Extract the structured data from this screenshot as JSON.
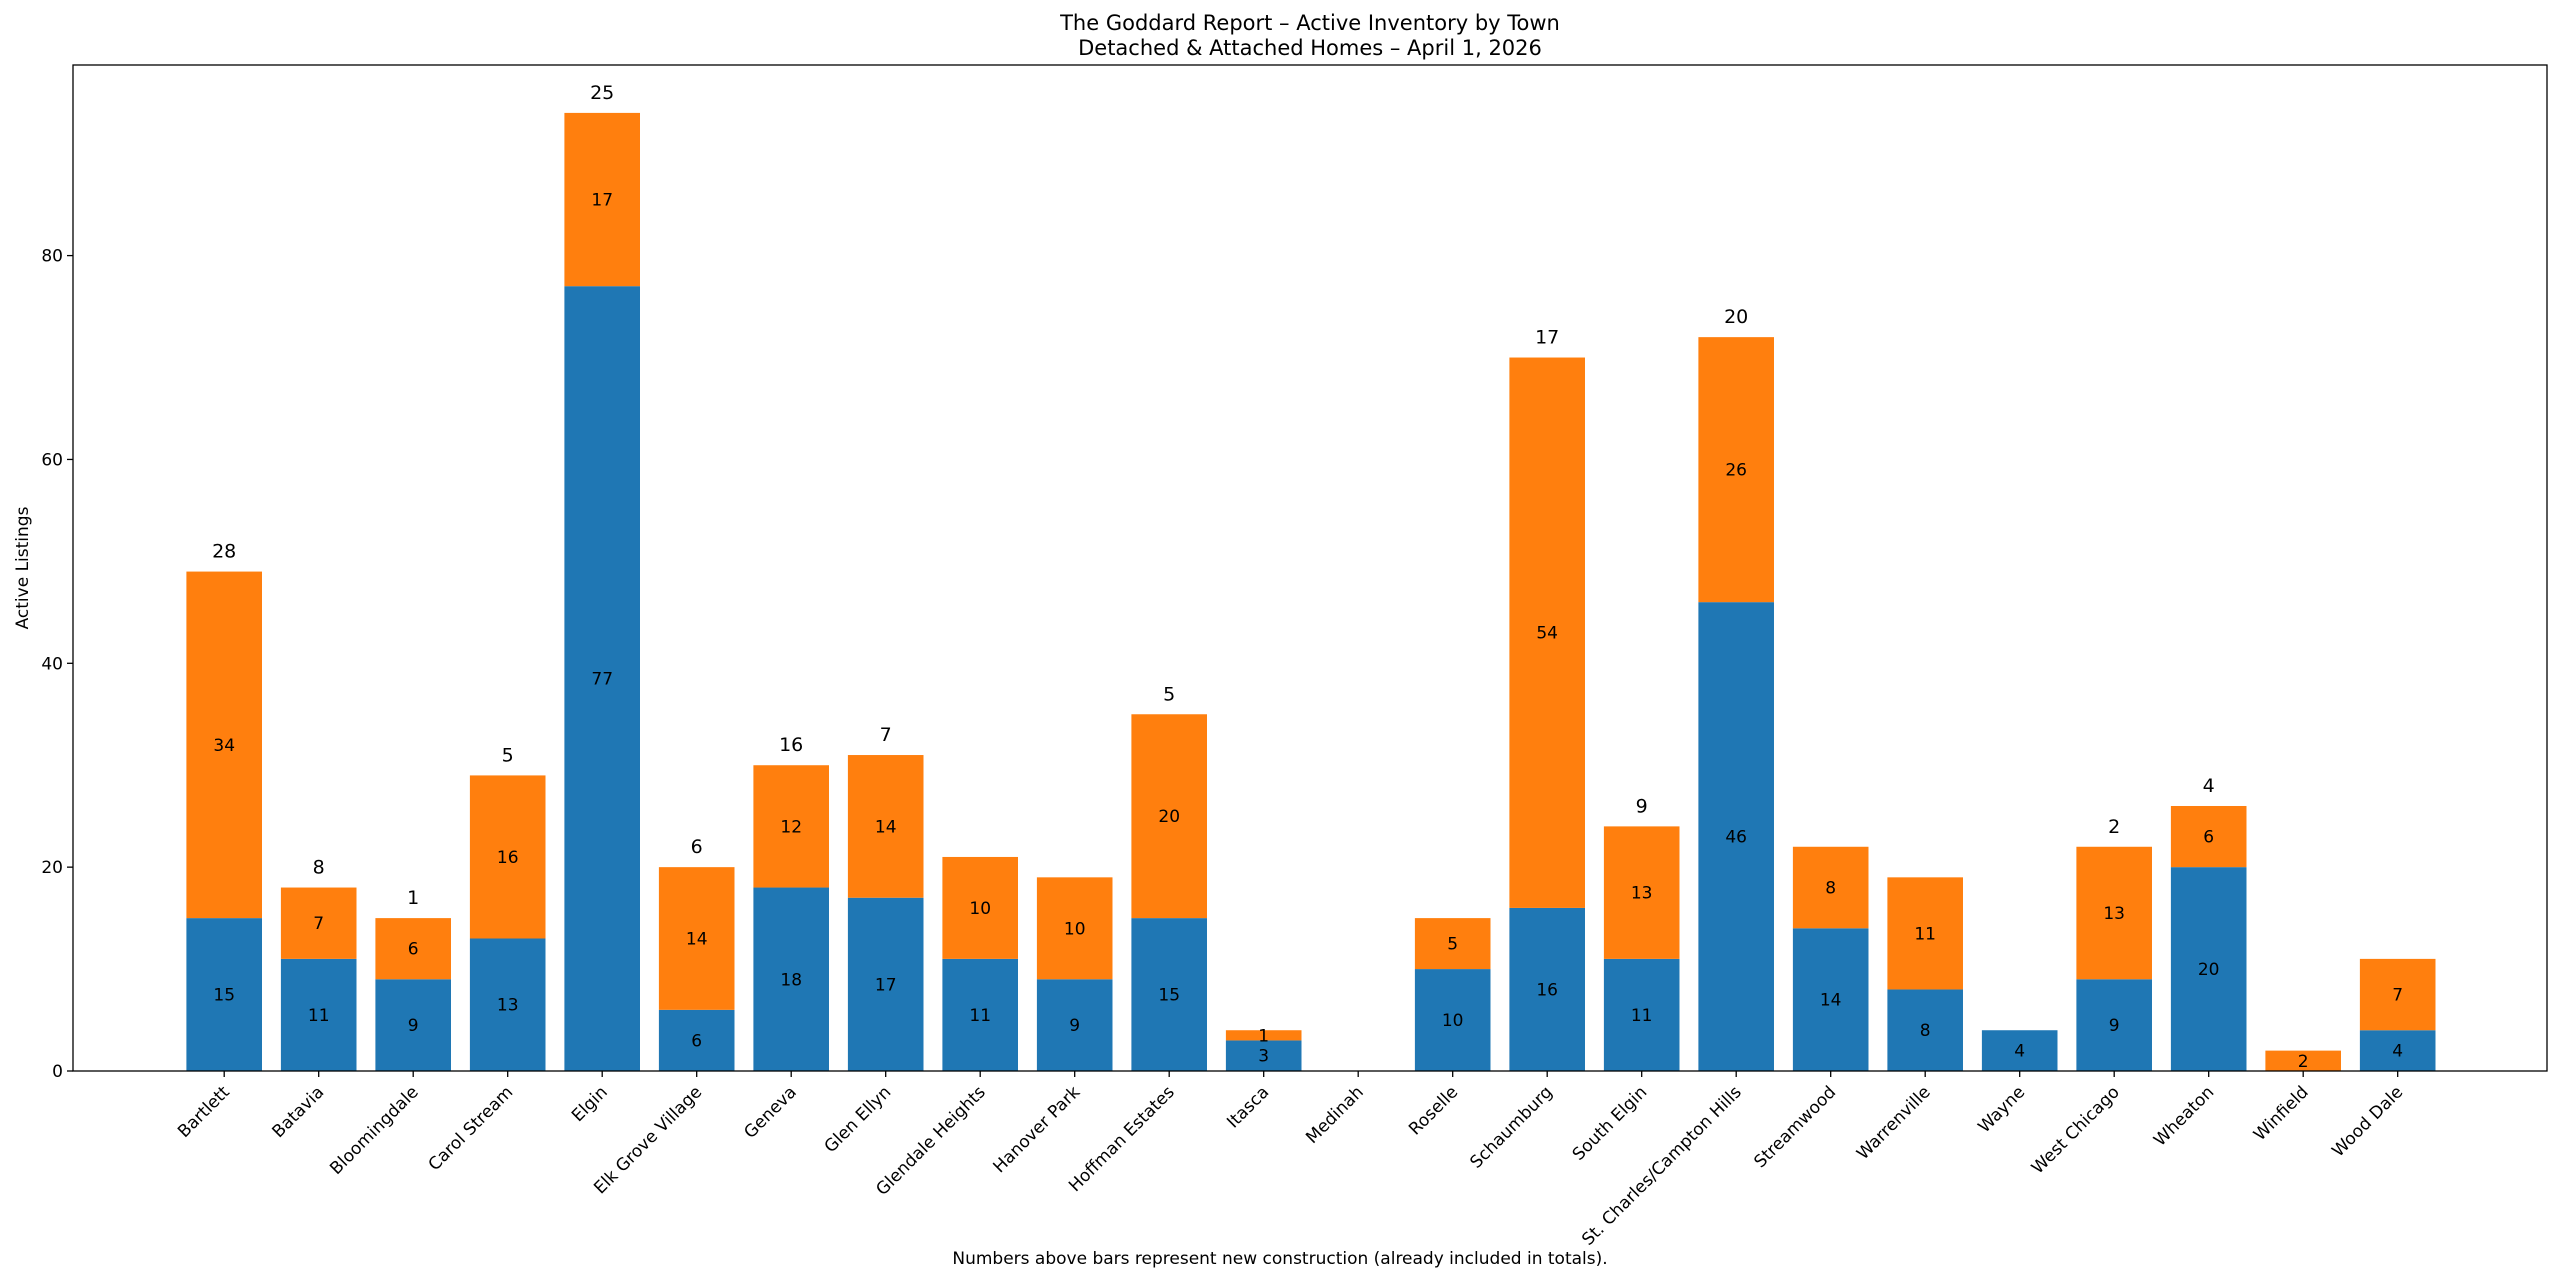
{
  "chart_data": {
    "type": "bar",
    "stacked": true,
    "title": "The Goddard Report – Active Inventory by Town",
    "subtitle": "Detached & Attached Homes – April 1, 2026",
    "xlabel": "",
    "ylabel": "Active Listings",
    "footnote": "Numbers above bars represent new construction (already included in totals).",
    "ylim": [
      0,
      98.7
    ],
    "yticks": [
      0,
      20,
      40,
      60,
      80
    ],
    "grid": false,
    "categories": [
      "Bartlett",
      "Batavia",
      "Bloomingdale",
      "Carol Stream",
      "Elgin",
      "Elk Grove Village",
      "Geneva",
      "Glen Ellyn",
      "Glendale Heights",
      "Hanover Park",
      "Hoffman Estates",
      "Itasca",
      "Medinah",
      "Roselle",
      "Schaumburg",
      "South Elgin",
      "St. Charles/Campton Hills",
      "Streamwood",
      "Warrenville",
      "Wayne",
      "West Chicago",
      "Wheaton",
      "Winfield",
      "Wood Dale"
    ],
    "series": [
      {
        "color": "#1f77b4",
        "values": [
          15,
          11,
          9,
          13,
          77,
          6,
          18,
          17,
          11,
          9,
          15,
          3,
          0,
          10,
          16,
          11,
          46,
          14,
          8,
          4,
          9,
          20,
          0,
          4
        ]
      },
      {
        "color": "#ff7f0e",
        "values": [
          34,
          7,
          6,
          16,
          17,
          14,
          12,
          14,
          10,
          10,
          20,
          1,
          0,
          5,
          54,
          13,
          26,
          8,
          11,
          0,
          13,
          6,
          2,
          7
        ]
      }
    ],
    "new_construction": [
      28,
      8,
      1,
      5,
      25,
      6,
      16,
      7,
      null,
      null,
      5,
      null,
      null,
      null,
      17,
      9,
      20,
      null,
      null,
      null,
      2,
      4,
      null,
      null
    ]
  }
}
